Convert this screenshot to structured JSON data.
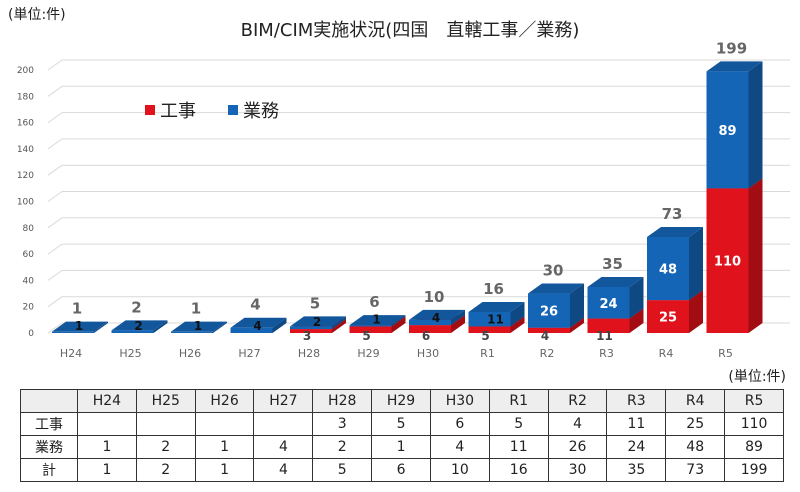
{
  "unit_label_top": "(単位:件)",
  "unit_label_table": "(単位:件)",
  "colors": {
    "koji": "#e0121b",
    "gyomu": "#1565b7",
    "total_label": "#666666",
    "grid": "#d9d9d9"
  },
  "chart_data": {
    "type": "bar",
    "stacked": true,
    "title": "BIM/CIM実施状況(四国　直轄工事／業務)",
    "categories": [
      "H24",
      "H25",
      "H26",
      "H27",
      "H28",
      "H29",
      "H30",
      "R1",
      "R2",
      "R3",
      "R4",
      "R5"
    ],
    "series": [
      {
        "name": "工事",
        "values": [
          0,
          0,
          0,
          0,
          3,
          5,
          6,
          5,
          4,
          11,
          25,
          110
        ]
      },
      {
        "name": "業務",
        "values": [
          1,
          2,
          1,
          4,
          2,
          1,
          4,
          11,
          26,
          24,
          48,
          89
        ]
      }
    ],
    "totals": [
      1,
      2,
      1,
      4,
      5,
      6,
      10,
      16,
      30,
      35,
      73,
      199
    ],
    "y_ticks": [
      "0",
      "20",
      "40",
      "60",
      "80",
      "100",
      "120",
      "140",
      "160",
      "180",
      "200"
    ],
    "ylim": [
      0,
      200
    ],
    "grid": true,
    "legend_position": "top-left"
  },
  "table": {
    "header": [
      "",
      "H24",
      "H25",
      "H26",
      "H27",
      "H28",
      "H29",
      "H30",
      "R1",
      "R2",
      "R3",
      "R4",
      "R5"
    ],
    "rows": [
      [
        "工事",
        "",
        "",
        "",
        "",
        "3",
        "5",
        "6",
        "5",
        "4",
        "11",
        "25",
        "110"
      ],
      [
        "業務",
        "1",
        "2",
        "1",
        "4",
        "2",
        "1",
        "4",
        "11",
        "26",
        "24",
        "48",
        "89"
      ],
      [
        "計",
        "1",
        "2",
        "1",
        "4",
        "5",
        "6",
        "10",
        "16",
        "30",
        "35",
        "73",
        "199"
      ]
    ]
  }
}
